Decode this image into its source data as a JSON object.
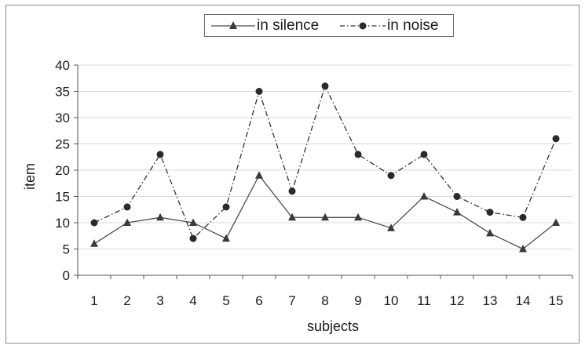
{
  "chart_data": {
    "type": "line",
    "title": "",
    "xlabel": "subjects",
    "ylabel": "item",
    "ylim": [
      0,
      40
    ],
    "yticks": [
      0,
      5,
      10,
      15,
      20,
      25,
      30,
      35,
      40
    ],
    "categories": [
      "1",
      "2",
      "3",
      "4",
      "5",
      "6",
      "7",
      "8",
      "9",
      "10",
      "11",
      "12",
      "13",
      "14",
      "15"
    ],
    "grid": true,
    "legend_position": "top",
    "series": [
      {
        "name": "in silence",
        "marker": "triangle",
        "line_style": "solid",
        "color": "#4d4d4d",
        "values": [
          6,
          10,
          11,
          10,
          7,
          19,
          11,
          11,
          11,
          9,
          15,
          12,
          8,
          5,
          10
        ]
      },
      {
        "name": "in noise",
        "marker": "circle",
        "line_style": "dash-dot",
        "color": "#333333",
        "values": [
          10,
          13,
          23,
          7,
          13,
          35,
          16,
          36,
          23,
          19,
          23,
          15,
          12,
          11,
          26
        ]
      }
    ]
  }
}
